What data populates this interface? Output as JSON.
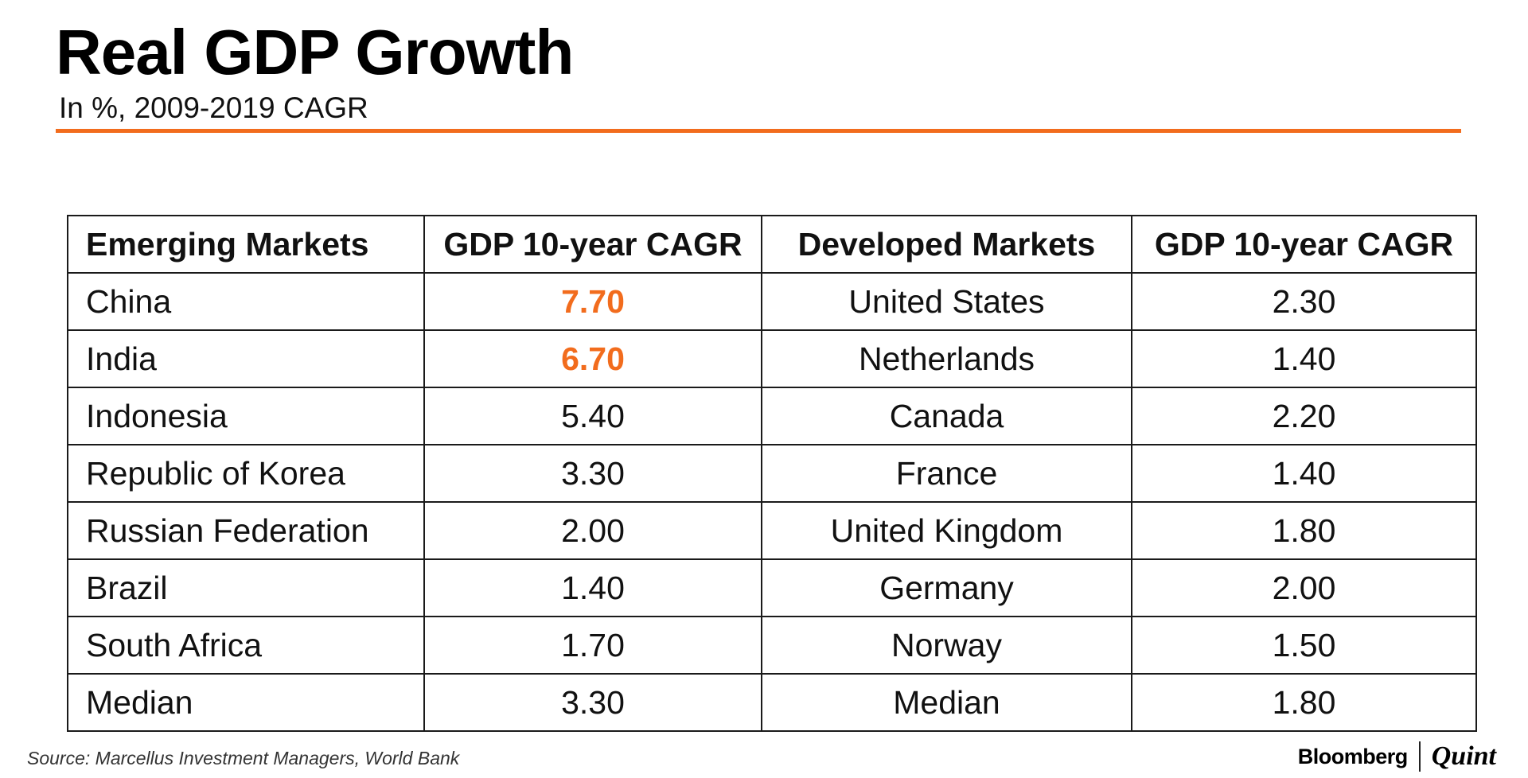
{
  "title": "Real GDP Growth",
  "subtitle": "In %, 2009-2019 CAGR",
  "accent_color": "#f26c1d",
  "chart_data": {
    "type": "table",
    "title": "Real GDP Growth",
    "subtitle": "In %, 2009-2019 CAGR",
    "columns": [
      "Emerging Markets",
      "GDP 10-year CAGR",
      "Developed Markets",
      "GDP 10-year CAGR"
    ],
    "rows": [
      {
        "em": "China",
        "em_cagr": "7.70",
        "em_highlight": true,
        "dm": "United States",
        "dm_cagr": "2.30"
      },
      {
        "em": "India",
        "em_cagr": "6.70",
        "em_highlight": true,
        "dm": "Netherlands",
        "dm_cagr": "1.40"
      },
      {
        "em": "Indonesia",
        "em_cagr": "5.40",
        "em_highlight": false,
        "dm": "Canada",
        "dm_cagr": "2.20"
      },
      {
        "em": "Republic of Korea",
        "em_cagr": "3.30",
        "em_highlight": false,
        "dm": "France",
        "dm_cagr": "1.40"
      },
      {
        "em": "Russian Federation",
        "em_cagr": "2.00",
        "em_highlight": false,
        "dm": "United Kingdom",
        "dm_cagr": "1.80"
      },
      {
        "em": "Brazil",
        "em_cagr": "1.40",
        "em_highlight": false,
        "dm": "Germany",
        "dm_cagr": "2.00"
      },
      {
        "em": "South Africa",
        "em_cagr": "1.70",
        "em_highlight": false,
        "dm": "Norway",
        "dm_cagr": "1.50"
      },
      {
        "em": "Median",
        "em_cagr": "3.30",
        "em_highlight": false,
        "dm": "Median",
        "dm_cagr": "1.80"
      }
    ]
  },
  "source": "Source: Marcellus Investment Managers, World Bank",
  "brand": {
    "left": "Bloomberg",
    "right": "Quint"
  }
}
